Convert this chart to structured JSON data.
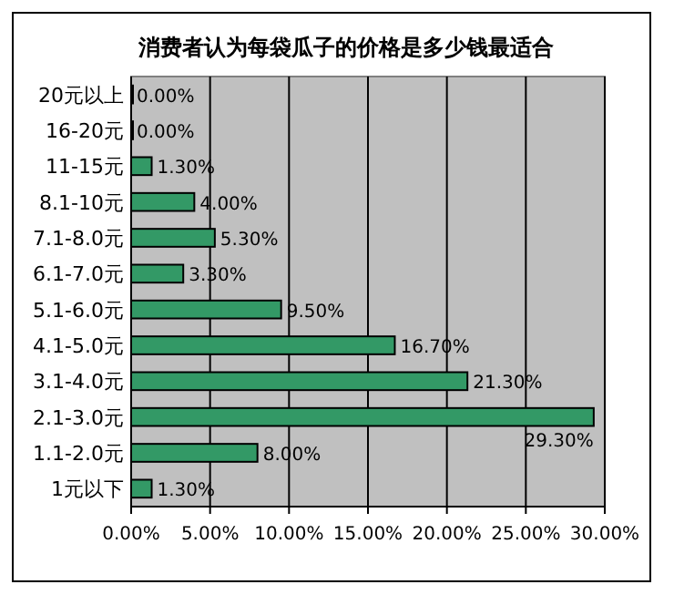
{
  "chart_data": {
    "type": "bar",
    "orientation": "horizontal",
    "title": "消费者认为每袋瓜子的价格是多少钱最适合",
    "categories": [
      "20元以上",
      "16-20元",
      "11-15元",
      "8.1-10元",
      "7.1-8.0元",
      "6.1-7.0元",
      "5.1-6.0元",
      "4.1-5.0元",
      "3.1-4.0元",
      "2.1-3.0元",
      "1.1-2.0元",
      "1元以下"
    ],
    "values": [
      0,
      0,
      1.3,
      4,
      5.3,
      3.3,
      9.5,
      16.7,
      21.3,
      29.3,
      8,
      1.3
    ],
    "value_labels": [
      "0.00%",
      "0.00%",
      "1.30%",
      "4.00%",
      "5.30%",
      "3.30%",
      "9.50%",
      "16.70%",
      "21.30%",
      "29.30%",
      "8.00%",
      "1.30%"
    ],
    "color": "#339966",
    "xlim": [
      0,
      30
    ],
    "xticks": [
      {
        "value": 0,
        "label": "0.00%"
      },
      {
        "value": 5,
        "label": "5.00%"
      },
      {
        "value": 10,
        "label": "10.00%"
      },
      {
        "value": 15,
        "label": "15.00%"
      },
      {
        "value": 20,
        "label": "20.00%"
      },
      {
        "value": 25,
        "label": "25.00%"
      },
      {
        "value": 30,
        "label": "30.00%"
      }
    ],
    "grid": "x"
  }
}
